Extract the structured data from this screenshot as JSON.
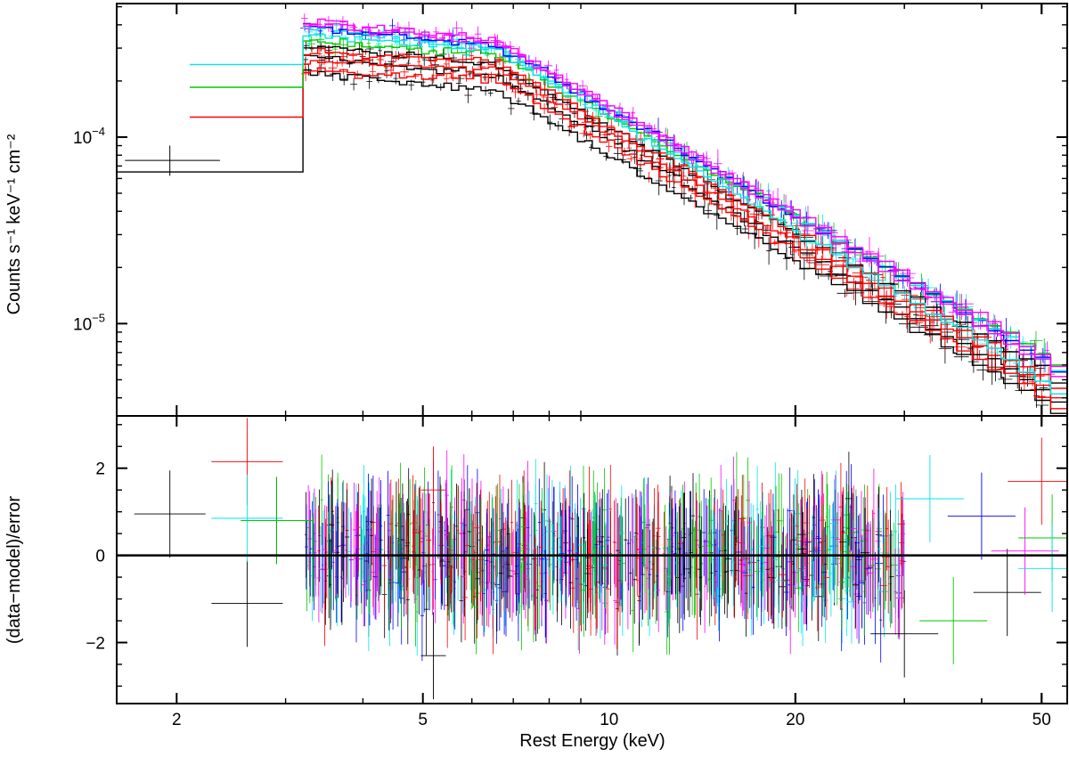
{
  "chart_data": [
    {
      "type": "step",
      "panel": "spectrum",
      "ylabel": "Counts s⁻¹ keV⁻¹ cm⁻²",
      "xscale": "log",
      "yscale": "log",
      "xlim": [
        1.6,
        55
      ],
      "ylim": [
        3.2e-06,
        0.00052
      ],
      "y_ticks": [
        {
          "value": 0.0001,
          "base": "10",
          "exp": "−4"
        },
        {
          "value": 1e-05,
          "base": "10",
          "exp": "−5"
        }
      ],
      "series_model": {
        "description": "model step curves approximated as knee + power-law; black lowest, magenta highest",
        "knee_keV": 6.6,
        "photon_index": 1.75
      },
      "series": [
        {
          "name": "black-low",
          "color": "#000000",
          "start_keV": 1.6,
          "low_start_level": 6.5e-05,
          "plateau": 0.000225,
          "at_knee": 0.000175,
          "tail_end": 3.3e-06
        },
        {
          "name": "black-mid",
          "color": "#000000",
          "start_keV": 3.2,
          "plateau": 0.000275,
          "at_knee": 0.00021,
          "tail_end": 3.8e-06
        },
        {
          "name": "black-high",
          "color": "#000000",
          "start_keV": 3.2,
          "plateau": 0.00031,
          "at_knee": 0.000245,
          "tail_end": 4.8e-06
        },
        {
          "name": "red-low",
          "color": "#ff0000",
          "start_keV": 2.1,
          "low_start_level": 0.000128,
          "plateau": 0.00023,
          "at_knee": 0.000205,
          "tail_end": 3.5e-06
        },
        {
          "name": "red-mid",
          "color": "#ff0000",
          "start_keV": 3.2,
          "plateau": 0.00026,
          "at_knee": 0.00023,
          "tail_end": 4e-06
        },
        {
          "name": "red-high",
          "color": "#ff0000",
          "start_keV": 3.2,
          "plateau": 0.000285,
          "at_knee": 0.000255,
          "tail_end": 4.5e-06
        },
        {
          "name": "green",
          "color": "#00c800",
          "start_keV": 2.1,
          "low_start_level": 0.000185,
          "plateau": 0.00033,
          "at_knee": 0.000275,
          "tail_end": 6e-06
        },
        {
          "name": "cyan-low",
          "color": "#00e5e5",
          "start_keV": 2.1,
          "low_start_level": 0.000245,
          "plateau": 0.00035,
          "at_knee": 0.000295,
          "tail_end": 4.2e-06
        },
        {
          "name": "cyan-high",
          "color": "#00e5e5",
          "start_keV": 3.2,
          "plateau": 0.00038,
          "at_knee": 0.000305,
          "tail_end": 5.6e-06
        },
        {
          "name": "blue",
          "color": "#0000ff",
          "start_keV": 3.2,
          "plateau": 0.000395,
          "at_knee": 0.00031,
          "tail_end": 5.5e-06
        },
        {
          "name": "magenta-low",
          "color": "#ff00ff",
          "start_keV": 3.2,
          "plateau": 0.000405,
          "at_knee": 0.00032,
          "tail_end": 5.2e-06
        },
        {
          "name": "magenta-high",
          "color": "#ff00ff",
          "start_keV": 3.2,
          "plateau": 0.00042,
          "at_knee": 0.00033,
          "tail_end": 5.9e-06
        }
      ]
    },
    {
      "type": "scatter-errorbar",
      "panel": "residuals",
      "xlabel": "Rest Energy (keV)",
      "ylabel": "(data−model)/error",
      "xscale": "log",
      "xlim": [
        1.6,
        55
      ],
      "ylim": [
        -3.4,
        3.2
      ],
      "y_ticks": [
        {
          "value": 2,
          "label": "2"
        },
        {
          "value": 0,
          "label": "0"
        },
        {
          "value": -2,
          "label": "−2"
        }
      ],
      "x_ticks": [
        {
          "value": 2,
          "label": "2"
        },
        {
          "value": 5,
          "label": "5"
        },
        {
          "value": 10,
          "label": "10"
        },
        {
          "value": 20,
          "label": "20"
        },
        {
          "value": 50,
          "label": "50"
        }
      ],
      "zero_line": 0,
      "colors": [
        "#000000",
        "#ff0000",
        "#00c800",
        "#0000ff",
        "#00e5e5",
        "#ff00ff"
      ],
      "points": [
        {
          "x": 1.95,
          "y": 0.95,
          "c": 0
        },
        {
          "x": 2.6,
          "y": -1.1,
          "c": 0
        },
        {
          "x": 2.6,
          "y": 2.15,
          "c": 1
        },
        {
          "x": 2.6,
          "y": 0.85,
          "c": 4
        },
        {
          "x": 2.9,
          "y": 0.8,
          "c": 0
        },
        {
          "x": 2.9,
          "y": 0.8,
          "c": 2
        },
        {
          "x": 5.2,
          "y": -2.3,
          "c": 0
        },
        {
          "x": 5.2,
          "y": 1.5,
          "c": 1
        },
        {
          "x": 30,
          "y": -1.8,
          "c": 0
        },
        {
          "x": 33,
          "y": 1.3,
          "c": 4
        },
        {
          "x": 36,
          "y": -1.5,
          "c": 2
        },
        {
          "x": 40,
          "y": 0.9,
          "c": 3
        },
        {
          "x": 44,
          "y": -0.85,
          "c": 0
        },
        {
          "x": 47,
          "y": 0.1,
          "c": 5
        },
        {
          "x": 50,
          "y": 1.7,
          "c": 1
        },
        {
          "x": 52,
          "y": 0.4,
          "c": 2
        },
        {
          "x": 52,
          "y": -0.3,
          "c": 4
        }
      ]
    }
  ],
  "plot_options": {
    "random_seed": 20240611,
    "spectrum_error_points_per_series": 60,
    "residual_dense_points": 950
  }
}
